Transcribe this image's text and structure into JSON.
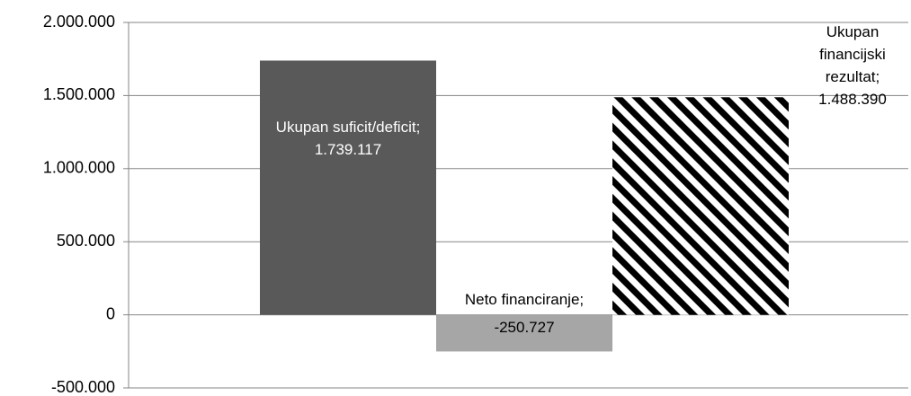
{
  "chart_data": {
    "type": "bar",
    "categories": [
      "Ukupan suficit/deficit",
      "Neto financiranje",
      "Ukupan financijski rezultat"
    ],
    "values": [
      1739117,
      -250727,
      1488390
    ],
    "value_labels": [
      "1.739.117",
      "-250.727",
      "1.488.390"
    ],
    "label_separator": ";",
    "colors": [
      "#595959",
      "#a6a6a6",
      "#000000"
    ],
    "hatch": [
      false,
      false,
      true
    ],
    "ylim": [
      -500000,
      2000000
    ],
    "yticks": [
      {
        "value": -500000,
        "label": "-500.000"
      },
      0,
      {
        "value": 500000,
        "label": "500.000"
      },
      {
        "value": 1000000,
        "label": "1.000.000"
      },
      {
        "value": 1500000,
        "label": "1.500.000"
      },
      {
        "value": 2000000,
        "label": "2.000.000"
      }
    ],
    "grid": true
  }
}
